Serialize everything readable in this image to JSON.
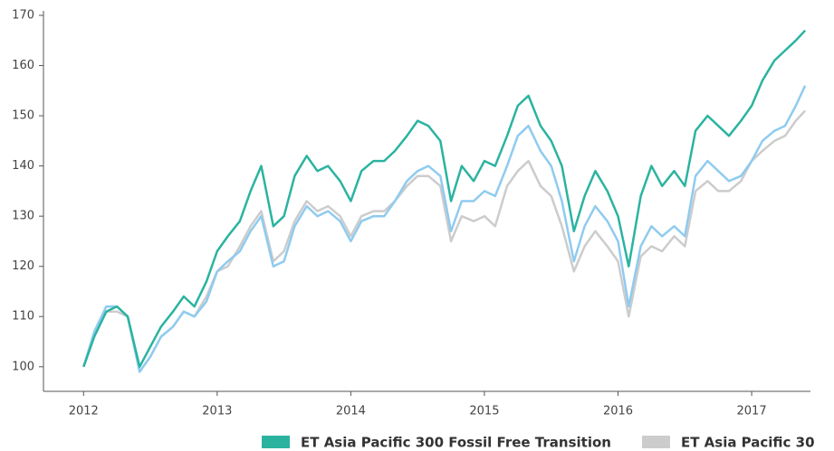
{
  "chart_data": {
    "type": "line",
    "x": [
      2012.0,
      2012.08,
      2012.17,
      2012.25,
      2012.33,
      2012.42,
      2012.5,
      2012.58,
      2012.67,
      2012.75,
      2012.83,
      2012.92,
      2013.0,
      2013.08,
      2013.17,
      2013.25,
      2013.33,
      2013.42,
      2013.5,
      2013.58,
      2013.67,
      2013.75,
      2013.83,
      2013.92,
      2014.0,
      2014.08,
      2014.17,
      2014.25,
      2014.33,
      2014.42,
      2014.5,
      2014.58,
      2014.67,
      2014.75,
      2014.83,
      2014.92,
      2015.0,
      2015.08,
      2015.17,
      2015.25,
      2015.33,
      2015.42,
      2015.5,
      2015.58,
      2015.67,
      2015.75,
      2015.83,
      2015.92,
      2016.0,
      2016.08,
      2016.17,
      2016.25,
      2016.33,
      2016.42,
      2016.5,
      2016.58,
      2016.67,
      2016.75,
      2016.83,
      2016.92,
      2017.0,
      2017.08,
      2017.17,
      2017.25,
      2017.33,
      2017.4
    ],
    "series": [
      {
        "name": "ET Asia Pacific 30",
        "color": "#cccccc",
        "values": [
          100,
          106,
          111,
          111,
          110,
          99,
          102,
          106,
          108,
          111,
          110,
          114,
          119,
          120,
          124,
          128,
          131,
          121,
          123,
          129,
          133,
          131,
          132,
          130,
          126,
          130,
          131,
          131,
          133,
          136,
          138,
          138,
          136,
          125,
          130,
          129,
          130,
          128,
          136,
          139,
          141,
          136,
          134,
          128,
          119,
          124,
          127,
          124,
          121,
          110,
          122,
          124,
          123,
          126,
          124,
          135,
          137,
          135,
          135,
          137,
          141,
          143,
          145,
          146,
          149,
          151
        ]
      },
      {
        "color": "#8fcbf0",
        "values": [
          100,
          107,
          112,
          112,
          110,
          99,
          102,
          106,
          108,
          111,
          110,
          113,
          119,
          121,
          123,
          127,
          130,
          120,
          121,
          128,
          132,
          130,
          131,
          129,
          125,
          129,
          130,
          130,
          133,
          137,
          139,
          140,
          138,
          127,
          133,
          133,
          135,
          134,
          140,
          146,
          148,
          143,
          140,
          133,
          121,
          128,
          132,
          129,
          125,
          112,
          124,
          128,
          126,
          128,
          126,
          138,
          141,
          139,
          137,
          138,
          141,
          145,
          147,
          148,
          152,
          156
        ]
      },
      {
        "name": "ET Asia Pacific 300 Fossil Free Transition",
        "color": "#2bb3a0",
        "values": [
          100,
          106,
          111,
          112,
          110,
          100,
          104,
          108,
          111,
          114,
          112,
          117,
          123,
          126,
          129,
          135,
          140,
          128,
          130,
          138,
          142,
          139,
          140,
          137,
          133,
          139,
          141,
          141,
          143,
          146,
          149,
          148,
          145,
          133,
          140,
          137,
          141,
          140,
          146,
          152,
          154,
          148,
          145,
          140,
          127,
          134,
          139,
          135,
          130,
          120,
          134,
          140,
          136,
          139,
          136,
          147,
          150,
          148,
          146,
          149,
          152,
          157,
          161,
          163,
          165,
          167
        ]
      }
    ],
    "xlim": [
      2011.7,
      2017.44
    ],
    "xticks": [
      2012,
      2013,
      2014,
      2015,
      2016,
      2017
    ],
    "ylim": [
      95.1,
      170.9
    ],
    "yticks": [
      100,
      110,
      120,
      130,
      140,
      150,
      160,
      170
    ]
  }
}
